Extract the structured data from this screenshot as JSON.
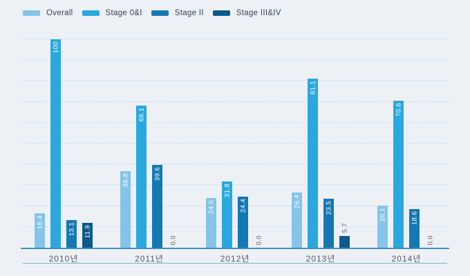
{
  "chart_data": {
    "type": "bar",
    "title": "",
    "xlabel": "",
    "ylabel": "",
    "categories": [
      "2010년",
      "2011년",
      "2012년",
      "2013년",
      "2014년"
    ],
    "series": [
      {
        "name": "Overall",
        "color": "#85c4e8",
        "values": [
          16.4,
          36.8,
          24.0,
          26.4,
          20.1
        ],
        "labels": [
          "16.4",
          "36.8",
          "24.0",
          "26.4",
          "20.1"
        ]
      },
      {
        "name": "Stage 0&I",
        "color": "#2aa8de",
        "values": [
          100,
          68.1,
          31.8,
          81.1,
          70.6
        ],
        "labels": [
          "100",
          "68.1",
          "31.8",
          "81.1",
          "70.6"
        ]
      },
      {
        "name": "Stage II",
        "color": "#1478b2",
        "values": [
          13.1,
          39.6,
          24.4,
          23.5,
          18.6
        ],
        "labels": [
          "13.1",
          "39.6",
          "24.4",
          "23.5",
          "18.6"
        ]
      },
      {
        "name": "Stage III&IV",
        "color": "#0c598b",
        "values": [
          11.9,
          0.0,
          0.0,
          5.7,
          0.0
        ],
        "labels": [
          "11.9",
          "0.0",
          "0.0",
          "5.7",
          "0.0"
        ]
      }
    ],
    "ylim": [
      0,
      100
    ],
    "gridlines": {
      "interval": 10,
      "style": "dotted",
      "visible_y_axis_labels": false
    },
    "legend_position": "top-left",
    "value_label_rotation": -90,
    "value_label_placement": "inside-top, outside-above for small bars",
    "colors": {
      "background": "#edf1f6",
      "gridline": "#c9d5e3",
      "axis_line": "#3f8fc3",
      "bottom_divider": "#79afd4",
      "label_inside": "#ffffff",
      "label_outside": "#5a5d61",
      "year_label": "#55585c",
      "legend_text": "#3a414c"
    }
  }
}
